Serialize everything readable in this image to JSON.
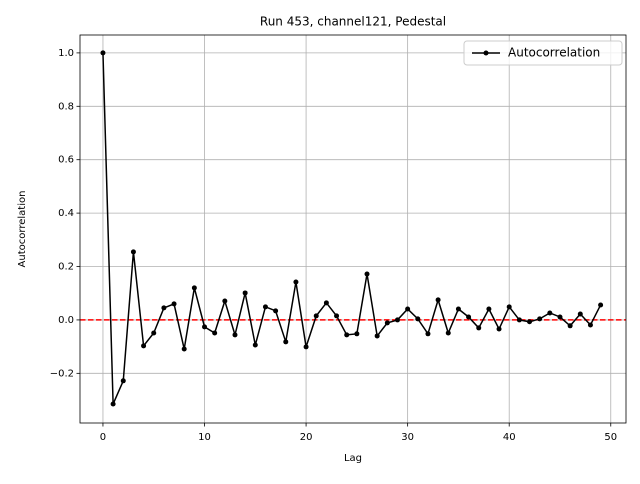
{
  "chart_data": {
    "type": "line",
    "title": "Run 453, channel121, Pedestal",
    "x_label": "Lag",
    "y_label": "Autocorrelation",
    "x": [
      0,
      1,
      2,
      3,
      4,
      5,
      6,
      7,
      8,
      9,
      10,
      11,
      12,
      13,
      14,
      15,
      16,
      17,
      18,
      19,
      20,
      21,
      22,
      23,
      24,
      25,
      26,
      27,
      28,
      29,
      30,
      31,
      32,
      33,
      34,
      35,
      36,
      37,
      38,
      39,
      40,
      41,
      42,
      43,
      44,
      45,
      46,
      47,
      48,
      49
    ],
    "series": [
      {
        "name": "Autocorrelation",
        "color": "#000000",
        "values": [
          1.0,
          -0.315,
          -0.228,
          0.255,
          -0.097,
          -0.049,
          0.045,
          0.06,
          -0.109,
          0.12,
          -0.026,
          -0.049,
          0.071,
          -0.056,
          0.101,
          -0.094,
          0.049,
          0.034,
          -0.082,
          0.142,
          -0.101,
          0.015,
          0.064,
          0.015,
          -0.056,
          -0.052,
          0.172,
          -0.06,
          -0.011,
          0.0,
          0.041,
          0.004,
          -0.052,
          0.075,
          -0.049,
          0.041,
          0.011,
          -0.03,
          0.041,
          -0.034,
          0.049,
          0.0,
          -0.007,
          0.004,
          0.026,
          0.011,
          -0.022,
          0.022,
          -0.019,
          0.056
        ]
      }
    ],
    "reference_line": {
      "value": 0,
      "color": "#ff0000"
    },
    "xlim": [
      -2.26,
      51.5
    ],
    "ylim": [
      -0.386,
      1.067
    ],
    "xticks": [
      0,
      10,
      20,
      30,
      40,
      50
    ],
    "yticks": [
      {
        "value": -0.2,
        "label": "−0.2"
      },
      {
        "value": 0,
        "label": "0.0"
      },
      0.2,
      0.4,
      0.6,
      0.8,
      {
        "value": 1,
        "label": "1.0"
      }
    ],
    "grid": true,
    "legend": "upper right"
  }
}
